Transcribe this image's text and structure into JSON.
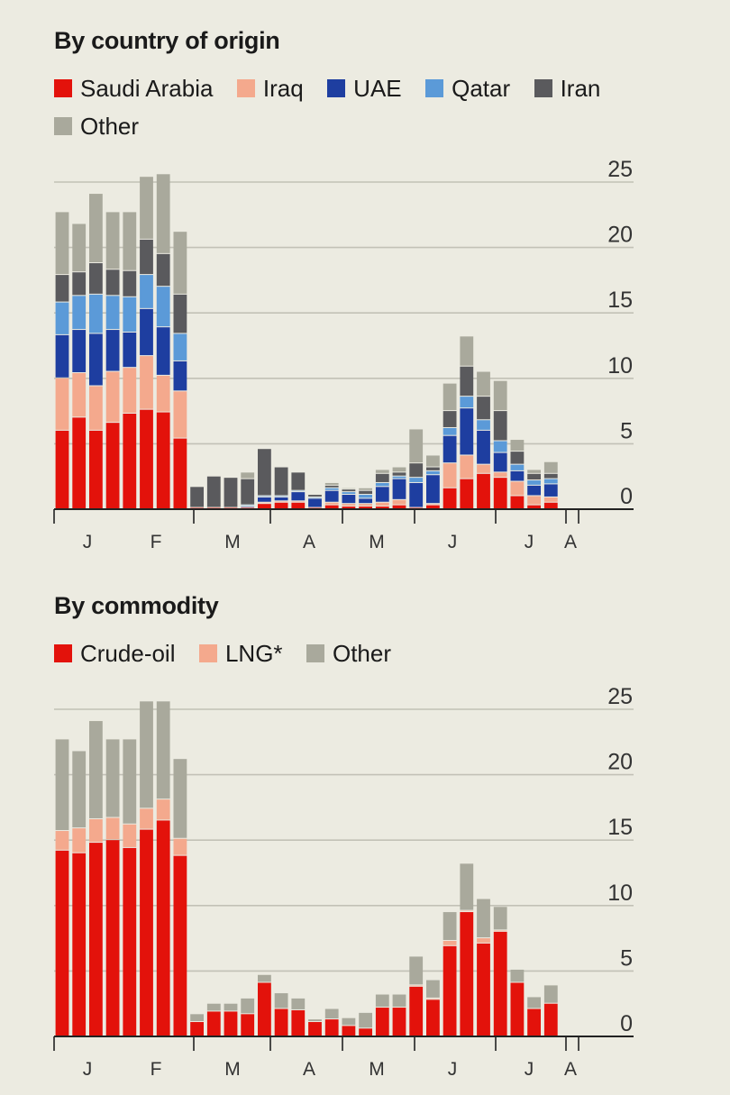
{
  "chart_data": [
    {
      "type": "bar",
      "stacked": true,
      "title": "By country of origin",
      "ylim": [
        0,
        25
      ],
      "yticks": [
        0,
        5,
        10,
        15,
        20,
        25
      ],
      "grid": true,
      "legend_position": "top-left",
      "month_labels": [
        "J",
        "F",
        "M",
        "A",
        "M",
        "J",
        "J",
        "A"
      ],
      "series": [
        {
          "name": "Saudi Arabia",
          "color": "#e3120b",
          "values": [
            6.0,
            7.0,
            6.0,
            6.6,
            7.3,
            7.6,
            7.4,
            5.4,
            0.1,
            0.1,
            0.1,
            0.1,
            0.4,
            0.5,
            0.5,
            0.1,
            0.3,
            0.2,
            0.2,
            0.2,
            0.3,
            0.1,
            0.3,
            1.6,
            2.3,
            2.7,
            2.4,
            1.0,
            0.3,
            0.5
          ]
        },
        {
          "name": "Iraq",
          "color": "#f4a98d",
          "values": [
            4.0,
            3.4,
            3.4,
            3.9,
            3.5,
            4.1,
            2.8,
            3.6,
            0.0,
            0.0,
            0.0,
            0.0,
            0.1,
            0.1,
            0.1,
            0.0,
            0.2,
            0.2,
            0.2,
            0.3,
            0.4,
            0.0,
            0.1,
            1.9,
            1.8,
            0.7,
            0.4,
            1.1,
            0.7,
            0.4
          ]
        },
        {
          "name": "UAE",
          "color": "#1e3ea0",
          "values": [
            3.3,
            3.3,
            4.0,
            3.2,
            2.7,
            3.6,
            3.7,
            2.3,
            0.0,
            0.0,
            0.0,
            0.1,
            0.4,
            0.3,
            0.7,
            0.7,
            0.9,
            0.7,
            0.4,
            1.2,
            1.6,
            1.9,
            2.2,
            2.1,
            3.6,
            2.6,
            1.5,
            0.8,
            0.8,
            1.0
          ]
        },
        {
          "name": "Qatar",
          "color": "#5b9ad8",
          "values": [
            2.5,
            2.6,
            3.0,
            2.6,
            2.7,
            2.6,
            3.1,
            2.1,
            0.0,
            0.0,
            0.0,
            0.1,
            0.1,
            0.1,
            0.1,
            0.1,
            0.2,
            0.2,
            0.3,
            0.3,
            0.2,
            0.4,
            0.3,
            0.6,
            0.9,
            0.8,
            0.9,
            0.5,
            0.4,
            0.4
          ]
        },
        {
          "name": "Iran",
          "color": "#5a5a5d",
          "values": [
            2.1,
            1.8,
            2.4,
            2.0,
            2.0,
            2.7,
            2.5,
            3.0,
            1.6,
            2.4,
            2.3,
            2.0,
            3.6,
            2.2,
            1.4,
            0.2,
            0.2,
            0.2,
            0.3,
            0.7,
            0.3,
            1.1,
            0.3,
            1.3,
            2.3,
            1.8,
            2.3,
            1.0,
            0.5,
            0.4
          ]
        },
        {
          "name": "Other",
          "color": "#a9a99c",
          "values": [
            4.8,
            3.7,
            5.3,
            4.4,
            4.5,
            4.8,
            6.1,
            4.8,
            0.0,
            0.0,
            0.0,
            0.5,
            0.0,
            0.0,
            0.0,
            0.0,
            0.2,
            0.1,
            0.2,
            0.3,
            0.4,
            2.6,
            0.9,
            2.1,
            2.3,
            1.9,
            2.3,
            0.9,
            0.3,
            0.9
          ]
        }
      ]
    },
    {
      "type": "bar",
      "stacked": true,
      "title": "By commodity",
      "ylim": [
        0,
        25
      ],
      "yticks": [
        0,
        5,
        10,
        15,
        20,
        25
      ],
      "grid": true,
      "legend_position": "top-left",
      "month_labels": [
        "J",
        "F",
        "M",
        "A",
        "M",
        "J",
        "J",
        "A"
      ],
      "series": [
        {
          "name": "Crude-oil",
          "color": "#e3120b",
          "values": [
            14.2,
            14.0,
            14.8,
            15.0,
            14.4,
            15.8,
            16.5,
            13.8,
            1.1,
            1.9,
            1.9,
            1.7,
            4.1,
            2.1,
            2.0,
            1.1,
            1.3,
            0.8,
            0.6,
            2.2,
            2.2,
            3.8,
            2.8,
            6.9,
            9.5,
            7.1,
            8.0,
            4.1,
            2.1,
            2.5
          ]
        },
        {
          "name": "LNG*",
          "color": "#f4a98d",
          "values": [
            1.5,
            1.9,
            1.8,
            1.7,
            1.8,
            1.6,
            1.6,
            1.3,
            0.0,
            0.0,
            0.0,
            0.0,
            0.0,
            0.0,
            0.0,
            0.0,
            0.0,
            0.0,
            0.0,
            0.0,
            0.0,
            0.1,
            0.1,
            0.4,
            0.1,
            0.4,
            0.1,
            0.0,
            0.0,
            0.0
          ]
        },
        {
          "name": "Other",
          "color": "#a9a99c",
          "values": [
            7.0,
            5.9,
            7.5,
            6.0,
            6.5,
            8.2,
            7.5,
            6.1,
            0.6,
            0.6,
            0.6,
            1.2,
            0.6,
            1.2,
            0.9,
            0.2,
            0.8,
            0.6,
            1.2,
            1.0,
            1.0,
            2.2,
            1.4,
            2.2,
            3.6,
            3.0,
            1.8,
            1.0,
            0.9,
            1.4
          ]
        }
      ]
    }
  ]
}
